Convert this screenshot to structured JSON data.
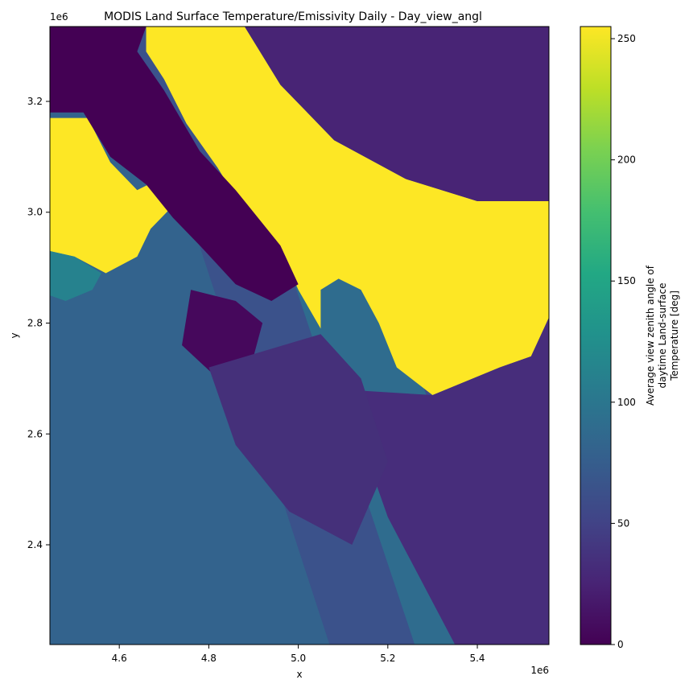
{
  "chart_data": {
    "type": "heatmap",
    "title": "MODIS Land Surface Temperature/Emissivity Daily - Day_view_angl",
    "xlabel": "x",
    "ylabel": "y",
    "x_offset_label": "1e6",
    "y_offset_label": "1e6",
    "xlim": [
      4.445,
      5.56
    ],
    "ylim": [
      2.22,
      3.335
    ],
    "x_ticks": [
      4.6,
      4.8,
      5.0,
      5.2,
      5.4
    ],
    "x_tick_labels": [
      "4.6",
      "4.8",
      "5.0",
      "5.2",
      "5.4"
    ],
    "y_ticks": [
      2.4,
      2.6,
      2.8,
      3.0,
      3.2
    ],
    "y_tick_labels": [
      "2.4",
      "2.6",
      "2.8",
      "3.0",
      "3.2"
    ],
    "colorbar": {
      "label": "Average view zenith angle of daytime Land-surface Temperature [deg]",
      "label_lines": [
        "Average view zenith angle of",
        "daytime Land-surface",
        "Temperature [deg]"
      ],
      "colormap": "viridis",
      "vmin": 0,
      "vmax": 255,
      "ticks": [
        0,
        50,
        100,
        150,
        200,
        250
      ],
      "tick_labels": [
        "0",
        "50",
        "100",
        "150",
        "200",
        "250"
      ]
    },
    "regions": [
      {
        "name": "fill-value",
        "value": 255,
        "color": "#fde725",
        "polygon": [
          [
            4.66,
            3.335
          ],
          [
            4.88,
            3.335
          ],
          [
            4.96,
            3.23
          ],
          [
            5.08,
            3.13
          ],
          [
            5.24,
            3.06
          ],
          [
            5.4,
            3.02
          ],
          [
            5.56,
            3.02
          ],
          [
            5.56,
            2.81
          ],
          [
            5.52,
            2.74
          ],
          [
            5.45,
            2.72
          ],
          [
            5.3,
            2.67
          ],
          [
            5.22,
            2.72
          ],
          [
            5.18,
            2.8
          ],
          [
            5.14,
            2.86
          ],
          [
            5.09,
            2.88
          ],
          [
            5.05,
            2.86
          ],
          [
            5.05,
            2.79
          ],
          [
            5.0,
            2.86
          ],
          [
            4.95,
            2.95
          ],
          [
            4.88,
            3.0
          ],
          [
            4.82,
            3.08
          ],
          [
            4.75,
            3.16
          ],
          [
            4.7,
            3.24
          ],
          [
            4.66,
            3.29
          ]
        ]
      },
      {
        "name": "fill-value-west",
        "value": 255,
        "color": "#fde725",
        "polygon": [
          [
            4.445,
            3.17
          ],
          [
            4.53,
            3.17
          ],
          [
            4.58,
            3.09
          ],
          [
            4.64,
            3.04
          ],
          [
            4.69,
            3.06
          ],
          [
            4.73,
            3.02
          ],
          [
            4.67,
            2.97
          ],
          [
            4.64,
            2.92
          ],
          [
            4.57,
            2.89
          ],
          [
            4.5,
            2.92
          ],
          [
            4.445,
            2.93
          ]
        ]
      },
      {
        "name": "low-angle-north",
        "value": 5,
        "color": "#440154",
        "polygon": [
          [
            4.445,
            3.335
          ],
          [
            4.66,
            3.335
          ],
          [
            4.64,
            3.29
          ],
          [
            4.7,
            3.22
          ],
          [
            4.78,
            3.11
          ],
          [
            4.86,
            3.04
          ],
          [
            4.96,
            2.94
          ],
          [
            5.0,
            2.87
          ],
          [
            4.94,
            2.84
          ],
          [
            4.86,
            2.87
          ],
          [
            4.78,
            2.94
          ],
          [
            4.72,
            2.99
          ],
          [
            4.66,
            3.05
          ],
          [
            4.58,
            3.1
          ],
          [
            4.52,
            3.18
          ],
          [
            4.445,
            3.18
          ]
        ]
      },
      {
        "name": "low-angle-central",
        "value": 10,
        "color": "#46085c",
        "polygon": [
          [
            4.76,
            2.86
          ],
          [
            4.86,
            2.84
          ],
          [
            4.92,
            2.8
          ],
          [
            4.9,
            2.74
          ],
          [
            4.82,
            2.7
          ],
          [
            4.74,
            2.76
          ]
        ]
      },
      {
        "name": "swath-east-north",
        "value": 45,
        "color": "#482475",
        "polygon": [
          [
            4.88,
            3.335
          ],
          [
            5.56,
            3.335
          ],
          [
            5.56,
            3.02
          ],
          [
            5.4,
            3.02
          ],
          [
            5.24,
            3.06
          ],
          [
            5.08,
            3.13
          ],
          [
            4.96,
            3.23
          ]
        ]
      },
      {
        "name": "swath-southeast",
        "value": 40,
        "color": "#472d7b",
        "polygon": [
          [
            5.1,
            2.68
          ],
          [
            5.3,
            2.67
          ],
          [
            5.45,
            2.72
          ],
          [
            5.52,
            2.74
          ],
          [
            5.56,
            2.81
          ],
          [
            5.56,
            2.22
          ],
          [
            5.35,
            2.22
          ],
          [
            5.2,
            2.45
          ]
        ]
      },
      {
        "name": "swath-middle-dark",
        "value": 42,
        "color": "#45307a",
        "polygon": [
          [
            4.8,
            2.72
          ],
          [
            5.05,
            2.78
          ],
          [
            5.14,
            2.7
          ],
          [
            5.2,
            2.55
          ],
          [
            5.12,
            2.4
          ],
          [
            4.98,
            2.46
          ],
          [
            4.86,
            2.58
          ]
        ]
      },
      {
        "name": "teal-patch",
        "value": 110,
        "color": "#26828e",
        "polygon": [
          [
            4.445,
            2.93
          ],
          [
            4.5,
            2.92
          ],
          [
            4.56,
            2.89
          ],
          [
            4.54,
            2.86
          ],
          [
            4.48,
            2.84
          ],
          [
            4.445,
            2.85
          ]
        ]
      }
    ],
    "swath_bands": [
      {
        "name": "band-1",
        "value": 80,
        "color": "#33638d",
        "x_top": 4.445,
        "x_bottom": 4.85
      },
      {
        "name": "band-2",
        "value": 70,
        "color": "#3b528b",
        "x_top": 4.62,
        "x_bottom": 5.07
      },
      {
        "name": "band-3",
        "value": 85,
        "color": "#2f6c8e",
        "x_top": 4.8,
        "x_bottom": 5.26
      },
      {
        "name": "band-4",
        "value": 65,
        "color": "#3e4c8a",
        "x_top": 5.0,
        "x_bottom": 5.48
      },
      {
        "name": "band-5",
        "value": 55,
        "color": "#414487",
        "x_top": 5.2,
        "x_bottom": 5.56
      }
    ]
  }
}
